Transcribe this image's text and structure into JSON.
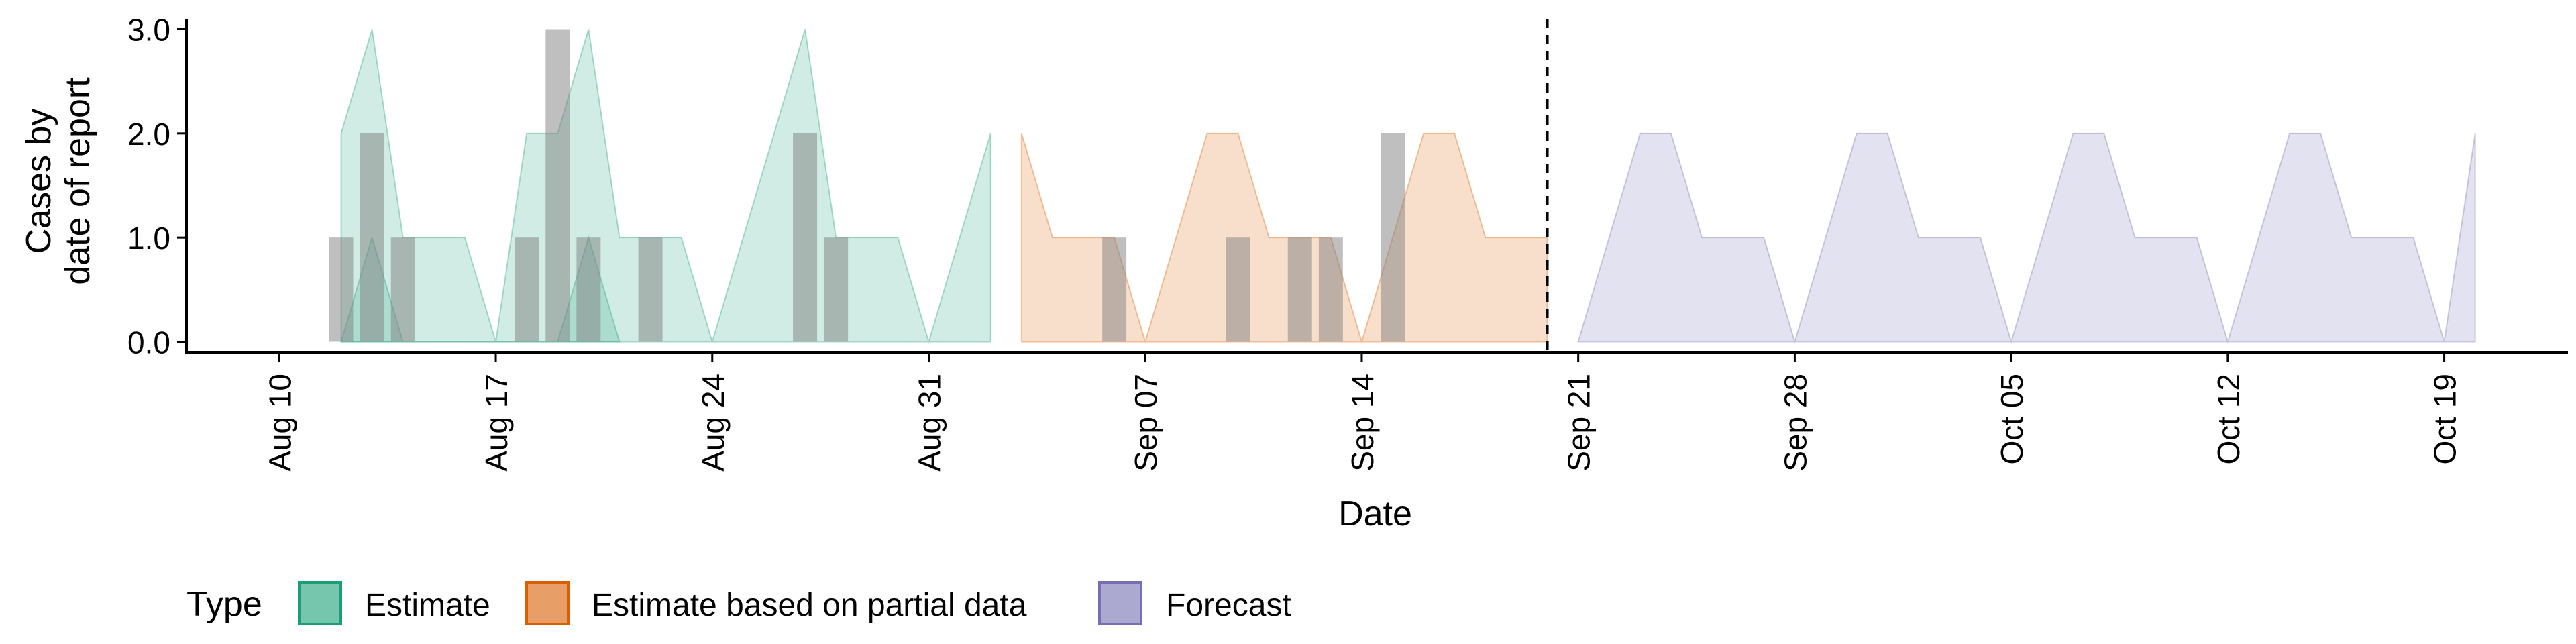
{
  "chart_data": {
    "type": "area",
    "title": "",
    "xlabel": "Date",
    "ylabel_lines": [
      "Cases by",
      "date of report"
    ],
    "ylim": [
      -0.1,
      3.1
    ],
    "yticks": [
      0,
      1,
      2,
      3
    ],
    "ytick_labels": [
      "0.0",
      "1.0",
      "2.0",
      "3.0"
    ],
    "xlim": [
      "2020-08-07",
      "2020-10-23"
    ],
    "xticks": [
      "2020-08-10",
      "2020-08-17",
      "2020-08-24",
      "2020-08-31",
      "2020-09-07",
      "2020-09-14",
      "2020-09-21",
      "2020-09-28",
      "2020-10-05",
      "2020-10-12",
      "2020-10-19"
    ],
    "xtick_labels": [
      "Aug 10",
      "Aug 17",
      "Aug 24",
      "Aug 31",
      "Sep 07",
      "Sep 14",
      "Sep 21",
      "Sep 28",
      "Oct 05",
      "Oct 12",
      "Oct 19"
    ],
    "vline_date": "2020-09-20",
    "grid": false,
    "legend": {
      "title": "Type",
      "placement": "bottom",
      "entries": [
        "Estimate",
        "Estimate based on partial data",
        "Forecast"
      ]
    },
    "colors": {
      "Estimate": "#1b9e77",
      "Estimate based on partial data": "#d95f02",
      "Forecast": "#7570b3",
      "observed": "#808080"
    },
    "series": [
      {
        "name": "Estimate",
        "type": "ribbon",
        "dates": [
          "2020-08-12",
          "2020-08-13",
          "2020-08-14",
          "2020-08-15",
          "2020-08-16",
          "2020-08-17",
          "2020-08-18",
          "2020-08-19",
          "2020-08-20",
          "2020-08-21",
          "2020-08-22",
          "2020-08-23",
          "2020-08-24",
          "2020-08-25",
          "2020-08-26",
          "2020-08-27",
          "2020-08-28",
          "2020-08-29",
          "2020-08-30",
          "2020-08-31",
          "2020-09-01",
          "2020-09-02"
        ],
        "lower": [
          0,
          0,
          0,
          0,
          0,
          0,
          0,
          0,
          0,
          0,
          0,
          0,
          0,
          0,
          0,
          0,
          0,
          0,
          0,
          0,
          0,
          0
        ],
        "upper": [
          2,
          3,
          1,
          1,
          1,
          0,
          2,
          2,
          3,
          1,
          1,
          1,
          0,
          1,
          2,
          3,
          1,
          1,
          1,
          0,
          1,
          2
        ]
      },
      {
        "name": "Estimate",
        "type": "ribbon",
        "dates": [
          "2020-08-12",
          "2020-08-13",
          "2020-08-14",
          "2020-08-15",
          "2020-08-16",
          "2020-08-17",
          "2020-08-18",
          "2020-08-19",
          "2020-08-20",
          "2020-08-21"
        ],
        "lower": [
          0,
          0,
          0,
          0,
          0,
          0,
          0,
          0,
          0,
          0
        ],
        "upper": [
          0,
          1,
          0,
          0,
          0,
          0,
          0,
          0,
          1,
          0
        ]
      },
      {
        "name": "Estimate based on partial data",
        "type": "ribbon",
        "dates": [
          "2020-09-03",
          "2020-09-04",
          "2020-09-05",
          "2020-09-06",
          "2020-09-07",
          "2020-09-08",
          "2020-09-09",
          "2020-09-10",
          "2020-09-11",
          "2020-09-12",
          "2020-09-13",
          "2020-09-14",
          "2020-09-15",
          "2020-09-16",
          "2020-09-17",
          "2020-09-18",
          "2020-09-19",
          "2020-09-20"
        ],
        "lower": [
          0,
          0,
          0,
          0,
          0,
          0,
          0,
          0,
          0,
          0,
          0,
          0,
          0,
          0,
          0,
          0,
          0,
          0
        ],
        "upper": [
          2,
          1,
          1,
          1,
          0,
          1,
          2,
          2,
          1,
          1,
          1,
          0,
          1,
          2,
          2,
          1,
          1,
          1
        ]
      },
      {
        "name": "Forecast",
        "type": "ribbon",
        "dates": [
          "2020-09-21",
          "2020-09-22",
          "2020-09-23",
          "2020-09-24",
          "2020-09-25",
          "2020-09-26",
          "2020-09-27",
          "2020-09-28",
          "2020-09-29",
          "2020-09-30",
          "2020-10-01",
          "2020-10-02",
          "2020-10-03",
          "2020-10-04",
          "2020-10-05",
          "2020-10-06",
          "2020-10-07",
          "2020-10-08",
          "2020-10-09",
          "2020-10-10",
          "2020-10-11",
          "2020-10-12",
          "2020-10-13",
          "2020-10-14",
          "2020-10-15",
          "2020-10-16",
          "2020-10-17",
          "2020-10-18",
          "2020-10-19",
          "2020-10-20"
        ],
        "lower": [
          0,
          0,
          0,
          0,
          0,
          0,
          0,
          0,
          0,
          0,
          0,
          0,
          0,
          0,
          0,
          0,
          0,
          0,
          0,
          0,
          0,
          0,
          0,
          0,
          0,
          0,
          0,
          0,
          0,
          0
        ],
        "upper": [
          0,
          1,
          2,
          2,
          1,
          1,
          1,
          0,
          1,
          2,
          2,
          1,
          1,
          1,
          0,
          1,
          2,
          2,
          1,
          1,
          1,
          0,
          1,
          2,
          2,
          1,
          1,
          1,
          0,
          2
        ]
      }
    ],
    "observed": {
      "name": "observed cases",
      "type": "bar",
      "dates": [
        "2020-08-12",
        "2020-08-13",
        "2020-08-14",
        "2020-08-18",
        "2020-08-19",
        "2020-08-20",
        "2020-08-22",
        "2020-08-27",
        "2020-08-28",
        "2020-09-06",
        "2020-09-10",
        "2020-09-12",
        "2020-09-13",
        "2020-09-15"
      ],
      "values": [
        1,
        2,
        1,
        1,
        3,
        1,
        1,
        2,
        1,
        1,
        1,
        1,
        1,
        2
      ]
    }
  }
}
